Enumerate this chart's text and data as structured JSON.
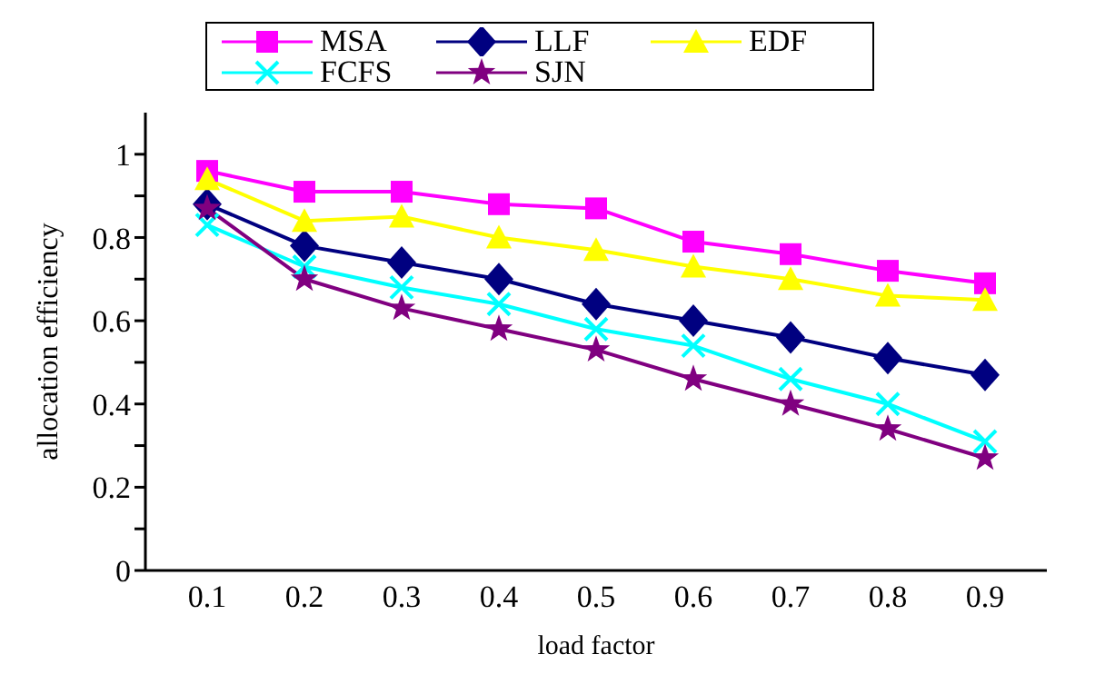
{
  "chart_data": {
    "type": "line",
    "xlabel": "load factor",
    "ylabel": "allocation efficiency",
    "categories": [
      "0.1",
      "0.2",
      "0.3",
      "0.4",
      "0.5",
      "0.6",
      "0.7",
      "0.8",
      "0.9"
    ],
    "series": [
      {
        "name": "MSA",
        "color": "#ff00ff",
        "marker": "square",
        "values": [
          0.96,
          0.91,
          0.91,
          0.88,
          0.87,
          0.79,
          0.76,
          0.72,
          0.69
        ]
      },
      {
        "name": "LLF",
        "color": "#000080",
        "marker": "diamond",
        "values": [
          0.88,
          0.78,
          0.74,
          0.7,
          0.64,
          0.6,
          0.56,
          0.51,
          0.47
        ]
      },
      {
        "name": "EDF",
        "color": "#ffff00",
        "marker": "triangle",
        "values": [
          0.94,
          0.84,
          0.85,
          0.8,
          0.77,
          0.73,
          0.7,
          0.66,
          0.65
        ]
      },
      {
        "name": "FCFS",
        "color": "#00ffff",
        "marker": "cross",
        "values": [
          0.83,
          0.73,
          0.68,
          0.64,
          0.58,
          0.54,
          0.46,
          0.4,
          0.31
        ]
      },
      {
        "name": "SJN",
        "color": "#800080",
        "marker": "star",
        "values": [
          0.87,
          0.7,
          0.63,
          0.58,
          0.53,
          0.46,
          0.4,
          0.34,
          0.27
        ]
      }
    ],
    "ylim": [
      0,
      1.1
    ],
    "yticks": [
      0,
      {
        "value": 0.1,
        "label": null
      },
      0.2,
      {
        "value": 0.3,
        "label": null
      },
      0.4,
      {
        "value": 0.5,
        "label": null
      },
      0.6,
      {
        "value": 0.7,
        "label": null
      },
      0.8,
      {
        "value": 0.9,
        "label": null
      },
      1
    ],
    "grid": false,
    "legend": "top",
    "line_style": "solid"
  }
}
